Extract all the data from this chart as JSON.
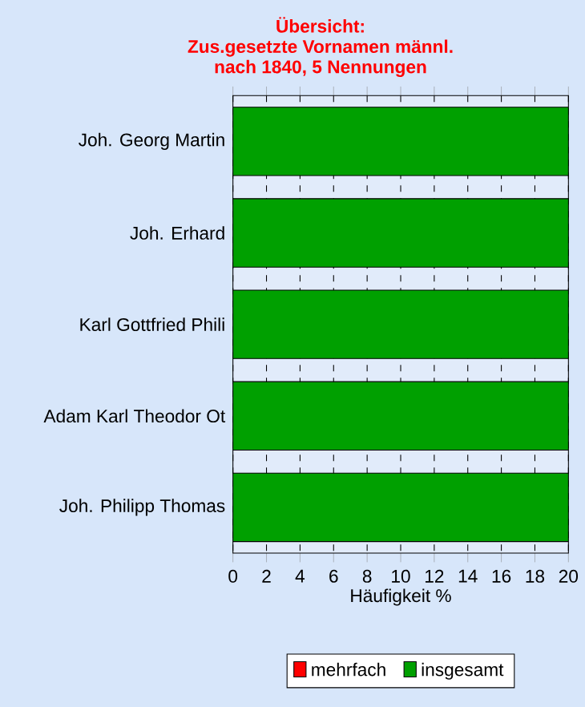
{
  "chart_data": {
    "type": "bar",
    "orientation": "horizontal",
    "stacked": true,
    "title": "Übersicht:\nZus.gesetzte Vornamen männl.\nnach 1840, 5 Nennungen",
    "xlabel": "Häufigkeit %",
    "categories": [
      "Joh. Georg Martin",
      "Joh. Erhard",
      "Karl Gottfried Phili",
      "Adam Karl Theodor Ot",
      "Joh. Philipp Thomas"
    ],
    "series": [
      {
        "name": "mehrfach",
        "color": "#ff0000",
        "values": [
          0,
          0,
          0,
          0,
          0
        ]
      },
      {
        "name": "insgesamt",
        "color": "#00a000",
        "values": [
          20,
          20,
          20,
          20,
          20
        ]
      }
    ],
    "xlim": [
      0,
      20
    ],
    "xticks": [
      0,
      2,
      4,
      6,
      8,
      10,
      12,
      14,
      16,
      18,
      20
    ],
    "grid": "x",
    "legend": "bottom"
  }
}
